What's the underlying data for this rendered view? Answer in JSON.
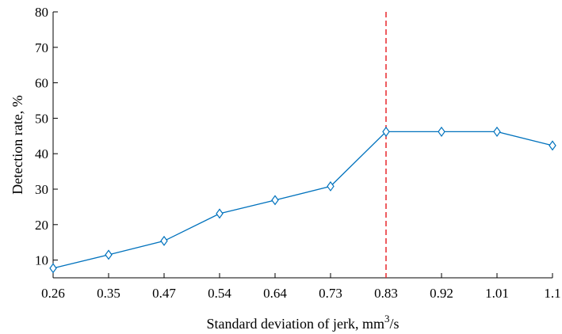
{
  "chart_data": {
    "type": "line",
    "categories": [
      "0.26",
      "0.35",
      "0.47",
      "0.54",
      "0.64",
      "0.73",
      "0.83",
      "0.92",
      "1.01",
      "1.1"
    ],
    "values": [
      7.7,
      11.5,
      15.4,
      23.1,
      26.9,
      30.8,
      46.2,
      46.2,
      46.2,
      42.3
    ],
    "ylim": [
      5,
      80
    ],
    "yticks": [
      10,
      20,
      30,
      40,
      50,
      60,
      70,
      80
    ],
    "ytick_labels": [
      "10",
      "20",
      "30",
      "40",
      "50",
      "60",
      "70",
      "80"
    ],
    "xlabel": "Standard deviation of jerk, mm",
    "xlabel_superscript": "3",
    "xlabel_suffix": "/s",
    "ylabel": "Detection rate, %",
    "threshold_category_index": 6,
    "marker": "diamond",
    "grid": false,
    "colors": {
      "line": "#0072BD",
      "threshold": "#e8262b",
      "axis": "#000000"
    }
  }
}
